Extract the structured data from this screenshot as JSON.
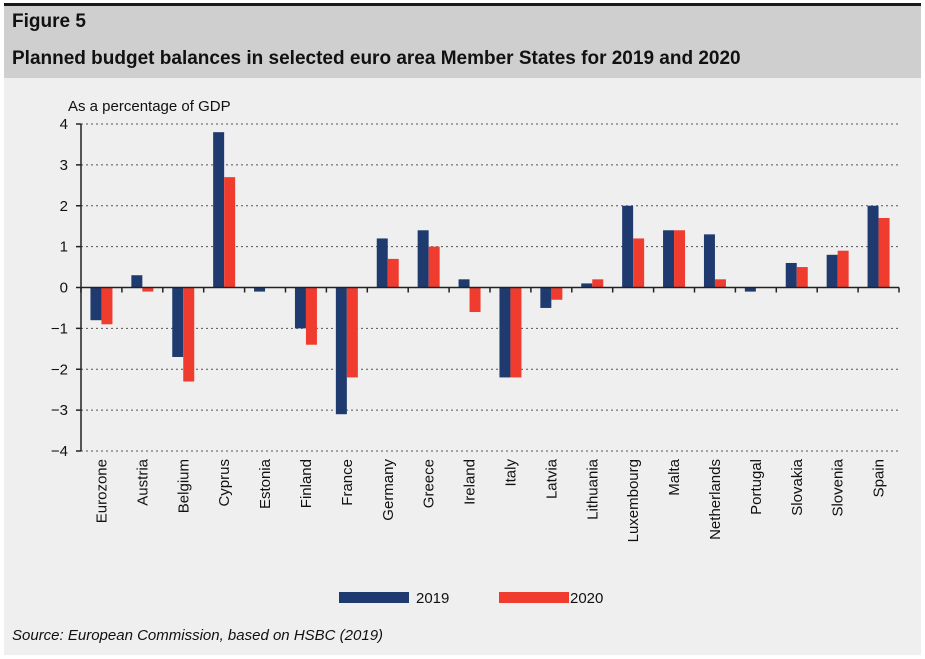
{
  "figure": {
    "label": "Figure 5",
    "title": "Planned budget balances in selected euro area Member States for 2019 and 2020",
    "source_prefix": "Source: European Commission, based on HSBC (",
    "source_year": "2019",
    "source_suffix": ")"
  },
  "chart_data": {
    "type": "bar",
    "title": "Planned budget balances in selected euro area Member States for 2019 and 2020",
    "ylabel": "As a percentage of GDP",
    "xlabel": "",
    "ylim": [
      -4,
      4
    ],
    "yticks": [
      4,
      3,
      2,
      1,
      0,
      -1,
      -2,
      -3,
      -4
    ],
    "ytick_labels": [
      "4",
      "3",
      "2",
      "1",
      "0",
      "−1",
      "−2",
      "−3",
      "−4"
    ],
    "grid": "horizontal dotted",
    "legend_position": "bottom-center",
    "categories": [
      "Eurozone",
      "Austria",
      "Belgium",
      "Cyprus",
      "Estonia",
      "Finland",
      "France",
      "Germany",
      "Greece",
      "Ireland",
      "Italy",
      "Latvia",
      "Lithuania",
      "Luxembourg",
      "Malta",
      "Netherlands",
      "Portugal",
      "Slovakia",
      "Slovenia",
      "Spain"
    ],
    "series": [
      {
        "name": "2019",
        "color": "#1f3a6e",
        "values": [
          -0.8,
          0.3,
          -1.7,
          3.8,
          -0.1,
          -1.0,
          -3.1,
          1.2,
          1.4,
          0.2,
          -2.2,
          -0.5,
          0.1,
          2.0,
          1.4,
          1.3,
          -0.1,
          0.6,
          0.8,
          2.0
        ]
      },
      {
        "name": "2020",
        "color": "#f03c2f",
        "values": [
          -0.9,
          -0.1,
          -2.3,
          2.7,
          0.0,
          -1.4,
          -2.2,
          0.7,
          1.0,
          -0.6,
          -2.2,
          -0.3,
          0.2,
          1.2,
          1.4,
          0.2,
          0.0,
          0.5,
          0.9,
          1.7
        ]
      }
    ]
  }
}
